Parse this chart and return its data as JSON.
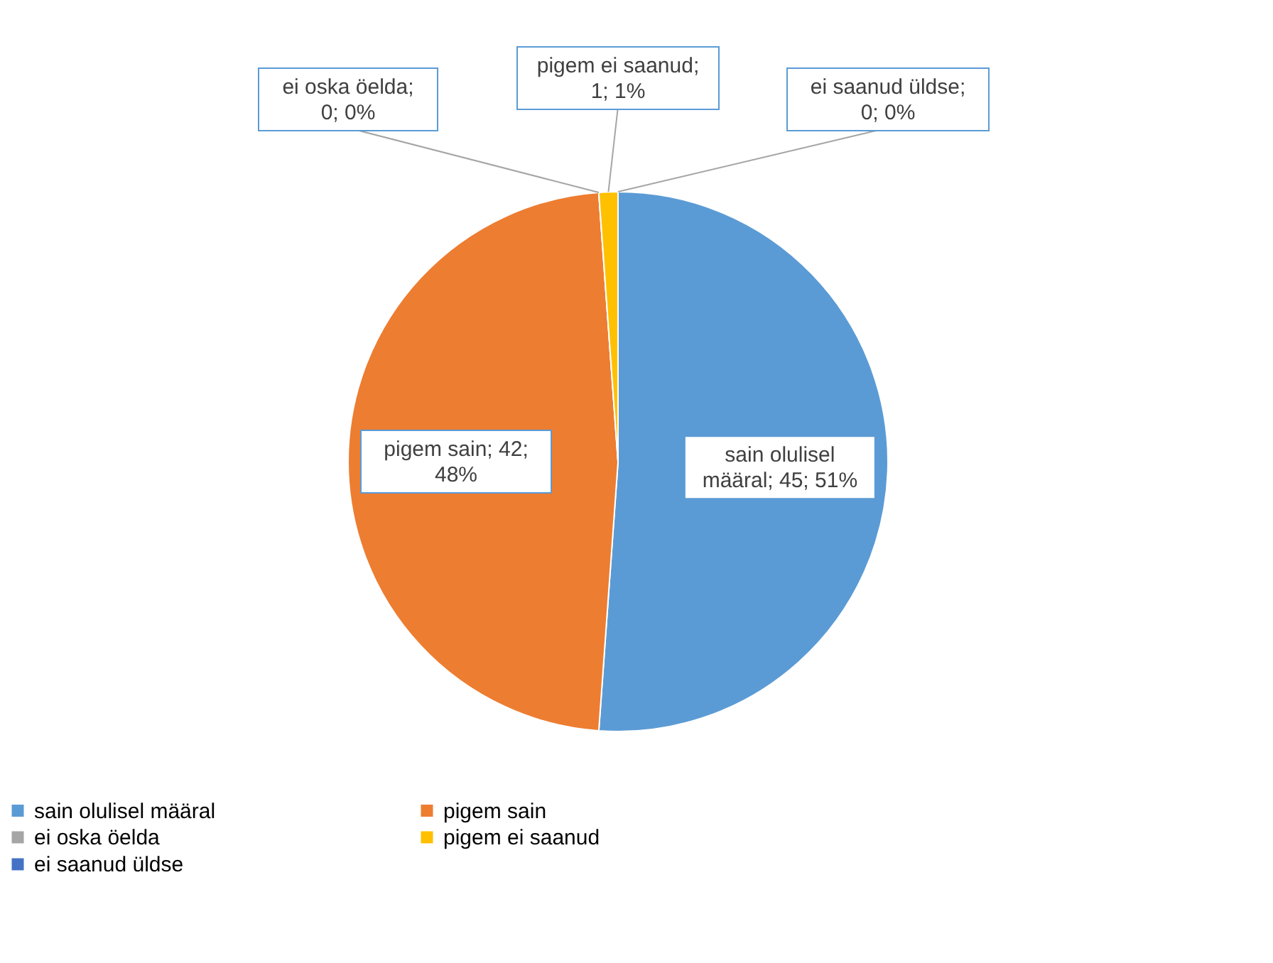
{
  "chart_data": {
    "type": "pie",
    "categories": [
      "sain olulisel määral",
      "pigem sain",
      "ei oska öelda",
      "pigem ei saanud",
      "ei saanud üldse"
    ],
    "values": [
      45,
      42,
      0,
      1,
      0
    ],
    "colors": [
      "#5b9bd5",
      "#ed7d31",
      "#a5a5a5",
      "#ffc000",
      "#4472c4"
    ],
    "value_labels": [
      "sain olulisel määral; 45; 51%",
      "pigem sain; 42; 48%",
      "ei oska öelda; 0; 0%",
      "pigem ei saanud; 1; 1%",
      "ei saanud üldse; 0; 0%"
    ],
    "legend": "bottom"
  }
}
